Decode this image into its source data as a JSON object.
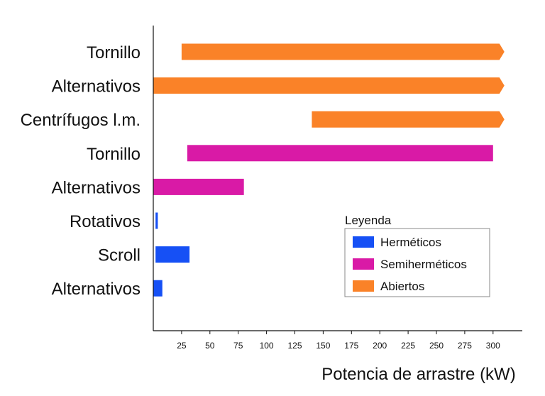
{
  "chart_data": {
    "type": "bar",
    "orientation": "horizontal",
    "xlabel": "Potencia de arrastre (kW)",
    "xlim": [
      0,
      325
    ],
    "xticks": [
      25,
      50,
      75,
      100,
      125,
      150,
      175,
      200,
      225,
      250,
      275,
      300
    ],
    "categories": [
      "Tornillo",
      "Alternativos",
      "Centrífugos l.m.",
      "Tornillo",
      "Alternativos",
      "Rotativos",
      "Scroll",
      "Alternativos"
    ],
    "bars": [
      {
        "category": "Tornillo",
        "group": "Abiertos",
        "start": 25,
        "end": 310,
        "open_ended": true
      },
      {
        "category": "Alternativos",
        "group": "Abiertos",
        "start": 0,
        "end": 310,
        "open_ended": true
      },
      {
        "category": "Centrífugos l.m.",
        "group": "Abiertos",
        "start": 140,
        "end": 310,
        "open_ended": true
      },
      {
        "category": "Tornillo",
        "group": "Semiherméticos",
        "start": 30,
        "end": 300,
        "open_ended": false
      },
      {
        "category": "Alternativos",
        "group": "Semiherméticos",
        "start": 0,
        "end": 80,
        "open_ended": false
      },
      {
        "category": "Rotativos",
        "group": "Herméticos",
        "start": 2,
        "end": 4,
        "open_ended": false
      },
      {
        "category": "Scroll",
        "group": "Herméticos",
        "start": 2,
        "end": 32,
        "open_ended": false
      },
      {
        "category": "Alternativos",
        "group": "Herméticos",
        "start": 0,
        "end": 8,
        "open_ended": false
      }
    ],
    "legend": {
      "title": "Leyenda",
      "position": "lower-right",
      "entries": [
        {
          "label": "Herméticos",
          "color": "#1650f5"
        },
        {
          "label": "Semiherméticos",
          "color": "#d91aa6"
        },
        {
          "label": "Abiertos",
          "color": "#fa8228"
        }
      ]
    },
    "grid": false
  }
}
